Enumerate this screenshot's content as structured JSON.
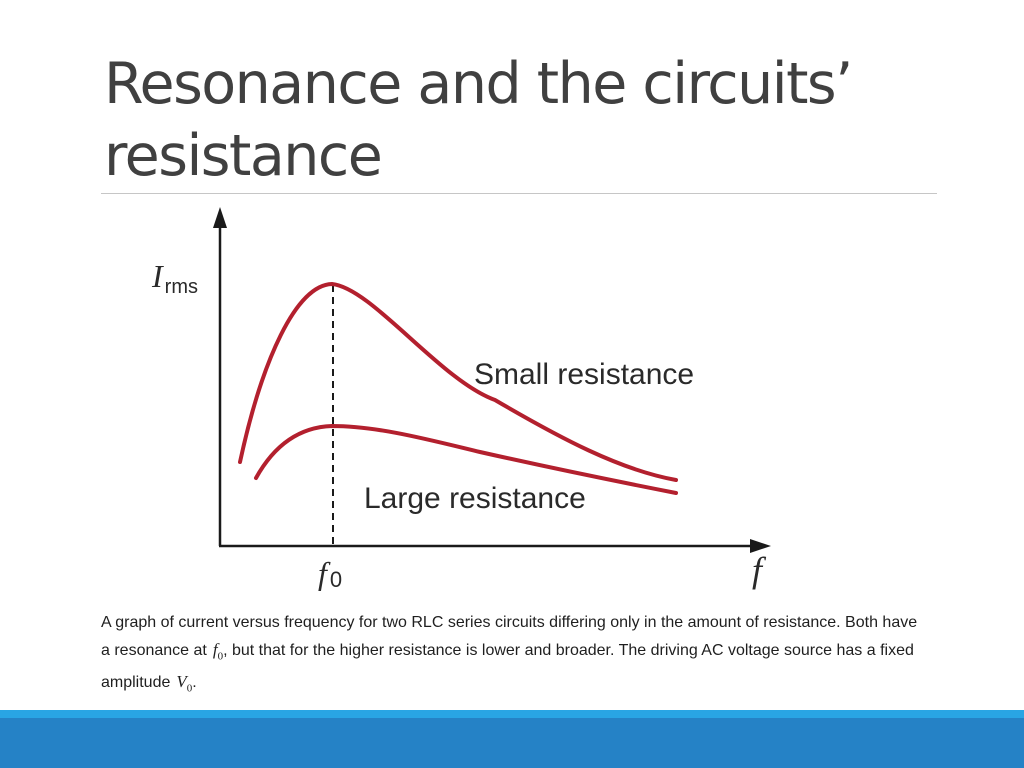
{
  "slide": {
    "title_line1": "Resonance and the circuits’",
    "title_line2": "resistance"
  },
  "figure": {
    "y_axis_label": "I",
    "y_axis_label_sub": "rms",
    "x_axis_label": "f",
    "resonance_label": "f",
    "resonance_label_sub": "0",
    "curve_small_label": "Small resistance",
    "curve_large_label": "Large resistance",
    "curve_color": "#b3202e"
  },
  "caption": {
    "text_part1": "A graph of current versus frequency for two RLC series circuits differing only in the amount of resistance. Both have a resonance at",
    "f_symbol": "f",
    "f_sub": "0",
    "text_part2": ", but that for the higher resistance is lower and broader. The driving AC voltage source has a fixed amplitude",
    "v_symbol": "V",
    "v_sub": "0",
    "text_end": "."
  },
  "colors": {
    "title_text": "#404040",
    "footer_light": "#29a5e4",
    "footer_dark": "#2582c6"
  }
}
